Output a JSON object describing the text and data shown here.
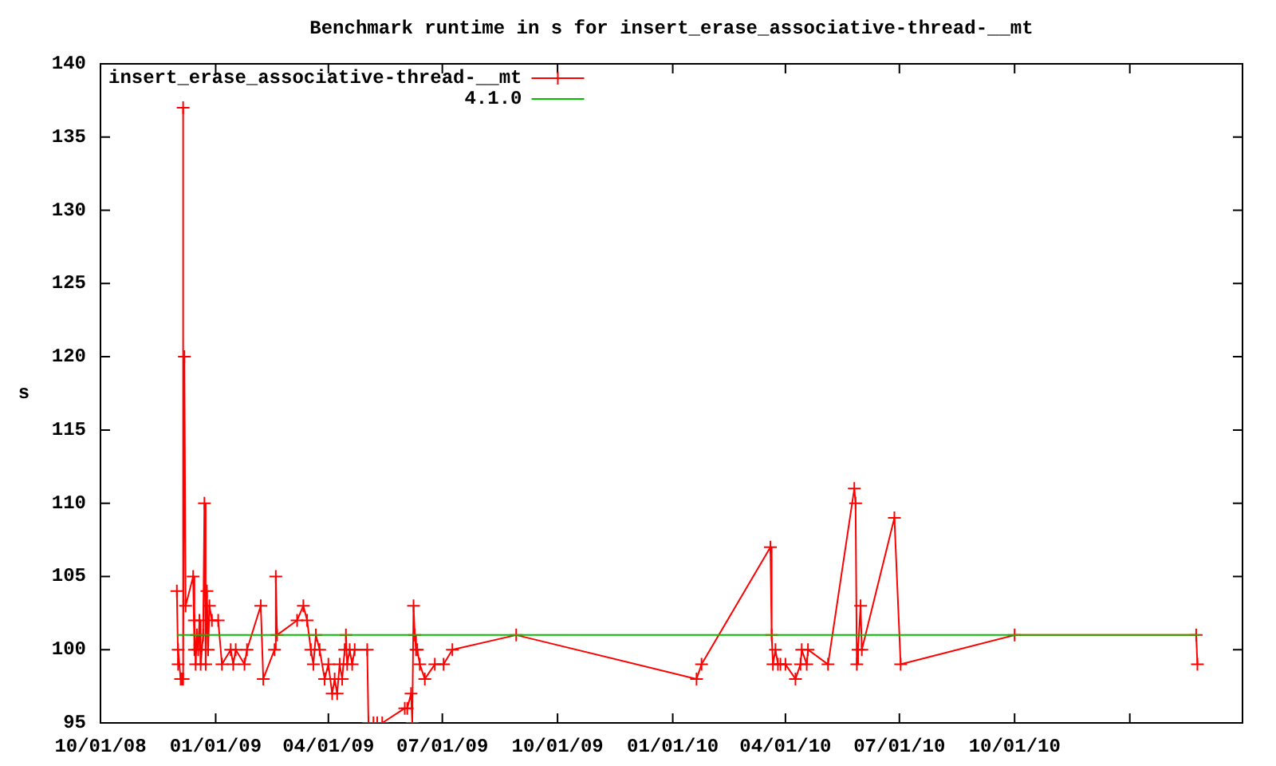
{
  "chart_data": {
    "type": "line",
    "title": "Benchmark runtime in s for insert_erase_associative-thread-__mt",
    "ylabel": "s",
    "legend": "top left",
    "marker": "cross",
    "xlim": [
      "2008-10-01",
      "2011-04-01"
    ],
    "xticks": [
      {
        "value": "2008-10-01",
        "label": "10/01/08"
      },
      {
        "value": "2009-01-01",
        "label": "01/01/09"
      },
      {
        "value": "2009-04-01",
        "label": "04/01/09"
      },
      {
        "value": "2009-07-01",
        "label": "07/01/09"
      },
      {
        "value": "2009-10-01",
        "label": "10/01/09"
      },
      {
        "value": "2010-01-01",
        "label": "01/01/10"
      },
      {
        "value": "2010-04-01",
        "label": "04/01/10"
      },
      {
        "value": "2010-07-01",
        "label": "07/01/10"
      },
      {
        "value": "2010-10-01",
        "label": "10/01/10"
      },
      {
        "value": "2011-01-01",
        "label": null
      },
      {
        "value": "2011-04-01",
        "label": null
      }
    ],
    "ylim": [
      95,
      140
    ],
    "yticks": [
      95,
      100,
      105,
      110,
      115,
      120,
      125,
      130,
      135,
      140
    ],
    "series": [
      {
        "name": "insert_erase_associative-thread-__mt",
        "color": "#ff0000",
        "x": [
          "2008-12-01",
          "2008-12-02",
          "2008-12-02",
          "2008-12-04",
          "2008-12-05",
          "2008-12-06",
          "2008-12-06",
          "2008-12-07",
          "2008-12-08",
          "2008-12-14",
          "2008-12-15",
          "2008-12-15",
          "2008-12-16",
          "2008-12-17",
          "2008-12-18",
          "2008-12-19",
          "2008-12-20",
          "2008-12-22",
          "2008-12-23",
          "2008-12-24",
          "2008-12-25",
          "2008-12-26",
          "2008-12-27",
          "2008-12-29",
          "2009-01-03",
          "2009-01-06",
          "2009-01-13",
          "2009-01-15",
          "2009-01-17",
          "2009-01-24",
          "2009-01-26",
          "2009-02-06",
          "2009-02-08",
          "2009-02-17",
          "2009-02-18",
          "2009-02-19",
          "2009-03-07",
          "2009-03-12",
          "2009-03-15",
          "2009-03-18",
          "2009-03-20",
          "2009-03-22",
          "2009-03-25",
          "2009-03-29",
          "2009-04-01",
          "2009-04-04",
          "2009-04-06",
          "2009-04-08",
          "2009-04-10",
          "2009-04-12",
          "2009-04-14",
          "2009-04-15",
          "2009-04-16",
          "2009-04-18",
          "2009-04-20",
          "2009-04-22",
          "2009-05-02",
          "2009-05-03",
          "2009-05-07",
          "2009-05-10",
          "2009-05-14",
          "2009-06-01",
          "2009-06-03",
          "2009-06-06",
          "2009-06-07",
          "2009-06-08",
          "2009-06-09",
          "2009-06-10",
          "2009-06-11",
          "2009-06-13",
          "2009-06-17",
          "2009-06-25",
          "2009-07-02",
          "2009-07-09",
          "2009-08-29",
          "2010-01-20",
          "2010-01-24",
          "2010-03-20",
          "2010-03-21",
          "2010-03-22",
          "2010-03-24",
          "2010-03-26",
          "2010-03-28",
          "2010-04-01",
          "2010-04-09",
          "2010-04-13",
          "2010-04-14",
          "2010-04-18",
          "2010-04-19",
          "2010-05-05",
          "2010-05-26",
          "2010-05-27",
          "2010-05-28",
          "2010-05-29",
          "2010-05-31",
          "2010-06-01",
          "2010-06-27",
          "2010-07-02",
          "2010-10-01",
          "2011-02-23",
          "2011-02-24"
        ],
        "values": [
          104,
          99,
          100,
          98,
          98,
          137,
          98,
          120,
          103,
          105,
          100,
          102,
          99,
          101,
          100,
          102,
          99,
          101,
          110,
          99,
          104,
          100,
          103,
          102,
          102,
          99,
          100,
          99,
          100,
          99,
          100,
          103,
          98,
          100,
          105,
          101,
          102,
          103,
          102,
          100,
          99,
          101,
          100,
          98,
          99,
          97,
          98,
          97,
          99,
          98,
          100,
          101,
          99,
          100,
          99,
          100,
          100,
          95,
          95,
          95,
          95,
          96,
          96,
          97,
          95,
          103,
          101,
          100,
          100,
          99,
          98,
          99,
          99,
          100,
          101,
          98,
          99,
          107,
          101,
          99,
          100,
          99,
          99,
          99,
          98,
          99,
          100,
          99,
          100,
          99,
          111,
          110,
          99,
          100,
          103,
          100,
          109,
          99,
          101,
          101,
          99
        ]
      },
      {
        "name": "4.1.0",
        "color": "#00c000",
        "marker": "none",
        "x": [
          "2008-12-01",
          "2011-02-26"
        ],
        "values": [
          101,
          101
        ]
      }
    ]
  }
}
